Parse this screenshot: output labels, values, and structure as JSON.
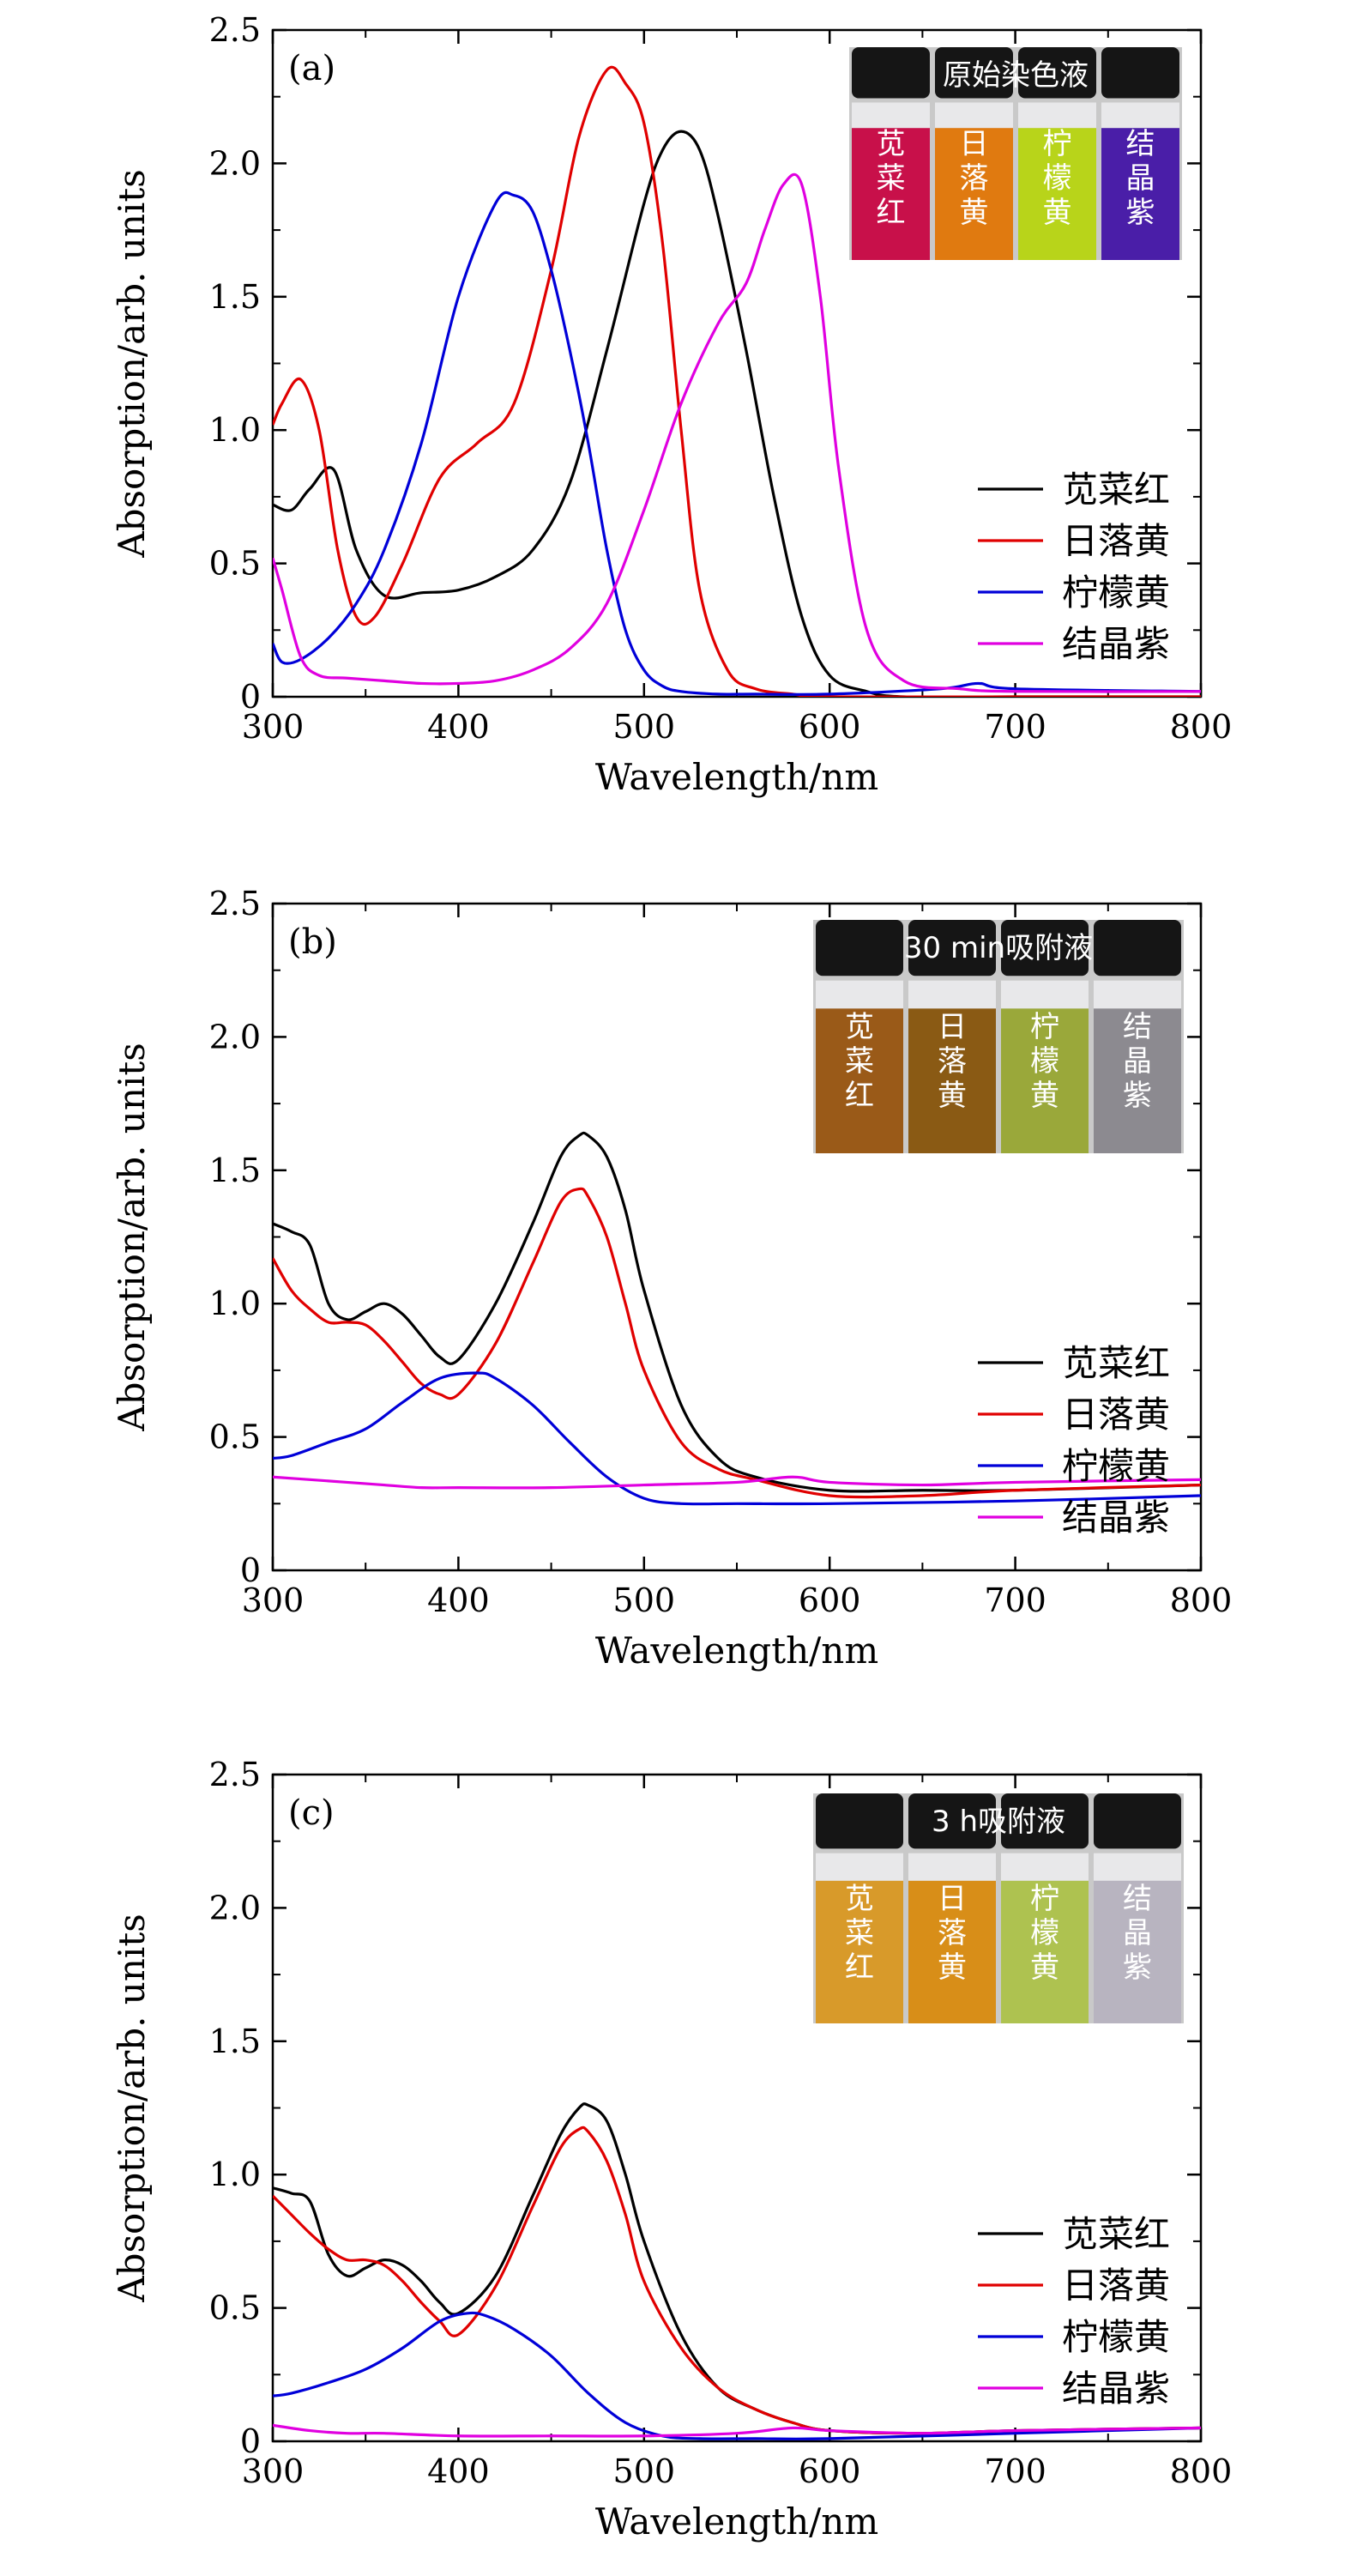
{
  "chart_data": [
    {
      "type": "line",
      "panel_label": "(a)",
      "xlabel": "Wavelength/nm",
      "ylabel": "Absorption/arb. units",
      "xlim": [
        300,
        800
      ],
      "ylim": [
        0,
        2.5
      ],
      "xticks": [
        "300",
        "400",
        "500",
        "600",
        "700",
        "800"
      ],
      "yticks": [
        "0",
        "0.5",
        "1.0",
        "1.5",
        "2.0",
        "2.5"
      ],
      "legend_position": "right",
      "photo": {
        "title": "原始染色液",
        "vials": [
          {
            "label": "苋菜红",
            "color": "#c8104a"
          },
          {
            "label": "日落黄",
            "color": "#e07a10"
          },
          {
            "label": "柠檬黄",
            "color": "#b8d41a"
          },
          {
            "label": "结晶紫",
            "color": "#4a1ea8"
          }
        ]
      },
      "series": [
        {
          "name": "苋菜红",
          "color": "#000000",
          "x": [
            300,
            310,
            320,
            333,
            345,
            360,
            380,
            400,
            420,
            440,
            460,
            480,
            500,
            510,
            520,
            530,
            540,
            555,
            570,
            585,
            600,
            620,
            640,
            700,
            800
          ],
          "y": [
            0.72,
            0.7,
            0.78,
            0.85,
            0.55,
            0.38,
            0.39,
            0.4,
            0.45,
            0.55,
            0.8,
            1.3,
            1.85,
            2.05,
            2.12,
            2.05,
            1.8,
            1.3,
            0.75,
            0.3,
            0.08,
            0.02,
            0.0,
            0.0,
            0.0
          ]
        },
        {
          "name": "日落黄",
          "color": "#e00000",
          "x": [
            300,
            305,
            315,
            325,
            335,
            345,
            355,
            370,
            390,
            410,
            430,
            450,
            465,
            480,
            490,
            500,
            510,
            520,
            530,
            545,
            560,
            580,
            600,
            700,
            800
          ],
          "y": [
            1.02,
            1.1,
            1.19,
            1.0,
            0.55,
            0.3,
            0.3,
            0.5,
            0.82,
            0.95,
            1.1,
            1.6,
            2.1,
            2.35,
            2.3,
            2.15,
            1.7,
            1.0,
            0.4,
            0.1,
            0.03,
            0.01,
            0.0,
            0.0,
            0.0
          ]
        },
        {
          "name": "柠檬黄",
          "color": "#0000d8",
          "x": [
            300,
            305,
            315,
            330,
            345,
            360,
            380,
            400,
            420,
            430,
            440,
            450,
            460,
            470,
            480,
            490,
            500,
            510,
            520,
            540,
            560,
            600,
            660,
            680,
            700,
            800
          ],
          "y": [
            0.2,
            0.13,
            0.14,
            0.22,
            0.35,
            0.55,
            0.95,
            1.5,
            1.85,
            1.88,
            1.82,
            1.6,
            1.3,
            0.95,
            0.55,
            0.25,
            0.1,
            0.04,
            0.02,
            0.01,
            0.01,
            0.01,
            0.03,
            0.05,
            0.03,
            0.02
          ]
        },
        {
          "name": "结晶紫",
          "color": "#e000e0",
          "x": [
            300,
            305,
            315,
            325,
            340,
            360,
            380,
            400,
            420,
            440,
            460,
            480,
            500,
            520,
            540,
            555,
            565,
            575,
            585,
            595,
            605,
            620,
            640,
            670,
            700,
            800
          ],
          "y": [
            0.52,
            0.4,
            0.15,
            0.08,
            0.07,
            0.06,
            0.05,
            0.05,
            0.06,
            0.1,
            0.18,
            0.35,
            0.7,
            1.1,
            1.4,
            1.55,
            1.75,
            1.92,
            1.92,
            1.5,
            0.85,
            0.25,
            0.06,
            0.03,
            0.02,
            0.02
          ]
        }
      ]
    },
    {
      "type": "line",
      "panel_label": "(b)",
      "xlabel": "Wavelength/nm",
      "ylabel": "Absorption/arb. units",
      "xlim": [
        300,
        800
      ],
      "ylim": [
        0,
        2.5
      ],
      "xticks": [
        "300",
        "400",
        "500",
        "600",
        "700",
        "800"
      ],
      "yticks": [
        "0",
        "0.5",
        "1.0",
        "1.5",
        "2.0",
        "2.5"
      ],
      "legend_position": "right",
      "photo": {
        "title": "30 min吸附液",
        "vials": [
          {
            "label": "苋菜红",
            "color": "#9a5a18"
          },
          {
            "label": "日落黄",
            "color": "#8a5a14"
          },
          {
            "label": "柠檬黄",
            "color": "#9aa83a"
          },
          {
            "label": "结晶紫",
            "color": "#8c8a90"
          }
        ]
      },
      "series": [
        {
          "name": "苋菜红",
          "color": "#000000",
          "x": [
            300,
            310,
            320,
            330,
            340,
            350,
            360,
            370,
            380,
            390,
            400,
            420,
            440,
            455,
            465,
            470,
            480,
            490,
            500,
            520,
            540,
            560,
            600,
            650,
            700,
            800
          ],
          "y": [
            1.3,
            1.27,
            1.22,
            1.0,
            0.94,
            0.97,
            1.0,
            0.96,
            0.88,
            0.8,
            0.79,
            1.0,
            1.3,
            1.55,
            1.63,
            1.63,
            1.55,
            1.35,
            1.05,
            0.62,
            0.42,
            0.35,
            0.3,
            0.3,
            0.3,
            0.32
          ]
        },
        {
          "name": "日落黄",
          "color": "#e00000",
          "x": [
            300,
            310,
            320,
            330,
            340,
            350,
            360,
            370,
            380,
            390,
            400,
            420,
            440,
            455,
            465,
            470,
            480,
            490,
            500,
            520,
            540,
            560,
            600,
            650,
            700,
            800
          ],
          "y": [
            1.17,
            1.05,
            0.98,
            0.93,
            0.93,
            0.92,
            0.86,
            0.78,
            0.7,
            0.66,
            0.66,
            0.85,
            1.15,
            1.38,
            1.43,
            1.4,
            1.25,
            1.0,
            0.75,
            0.48,
            0.38,
            0.34,
            0.28,
            0.28,
            0.3,
            0.32
          ]
        },
        {
          "name": "柠檬黄",
          "color": "#0000d8",
          "x": [
            300,
            310,
            330,
            350,
            370,
            390,
            410,
            420,
            440,
            460,
            480,
            500,
            520,
            550,
            600,
            700,
            800
          ],
          "y": [
            0.42,
            0.43,
            0.48,
            0.53,
            0.63,
            0.72,
            0.74,
            0.72,
            0.62,
            0.48,
            0.35,
            0.27,
            0.25,
            0.25,
            0.25,
            0.26,
            0.28
          ]
        },
        {
          "name": "结晶紫",
          "color": "#e000e0",
          "x": [
            300,
            320,
            340,
            360,
            380,
            400,
            450,
            500,
            550,
            580,
            600,
            650,
            700,
            800
          ],
          "y": [
            0.35,
            0.34,
            0.33,
            0.32,
            0.31,
            0.31,
            0.31,
            0.32,
            0.33,
            0.35,
            0.33,
            0.32,
            0.33,
            0.34
          ]
        }
      ]
    },
    {
      "type": "line",
      "panel_label": "(c)",
      "xlabel": "Wavelength/nm",
      "ylabel": "Absorption/arb. units",
      "xlim": [
        300,
        800
      ],
      "ylim": [
        0,
        2.5
      ],
      "xticks": [
        "300",
        "400",
        "500",
        "600",
        "700",
        "800"
      ],
      "yticks": [
        "0",
        "0.5",
        "1.0",
        "1.5",
        "2.0",
        "2.5"
      ],
      "legend_position": "right",
      "photo": {
        "title": "3 h吸附液",
        "vials": [
          {
            "label": "苋菜红",
            "color": "#d89a2a"
          },
          {
            "label": "日落黄",
            "color": "#d88e18"
          },
          {
            "label": "柠檬黄",
            "color": "#aec250"
          },
          {
            "label": "结晶紫",
            "color": "#b8b4c0"
          }
        ]
      },
      "series": [
        {
          "name": "苋菜红",
          "color": "#000000",
          "x": [
            300,
            310,
            320,
            330,
            340,
            350,
            360,
            370,
            380,
            390,
            400,
            420,
            440,
            455,
            465,
            470,
            480,
            490,
            500,
            520,
            540,
            560,
            580,
            600,
            650,
            700,
            800
          ],
          "y": [
            0.95,
            0.93,
            0.9,
            0.7,
            0.62,
            0.65,
            0.68,
            0.66,
            0.6,
            0.52,
            0.48,
            0.62,
            0.92,
            1.15,
            1.25,
            1.26,
            1.2,
            1.0,
            0.75,
            0.4,
            0.2,
            0.12,
            0.07,
            0.04,
            0.03,
            0.04,
            0.05
          ]
        },
        {
          "name": "日落黄",
          "color": "#e00000",
          "x": [
            300,
            310,
            320,
            330,
            340,
            350,
            360,
            370,
            380,
            390,
            400,
            420,
            440,
            455,
            465,
            470,
            480,
            490,
            500,
            520,
            540,
            560,
            580,
            600,
            650,
            700,
            800
          ],
          "y": [
            0.92,
            0.85,
            0.78,
            0.72,
            0.68,
            0.68,
            0.66,
            0.6,
            0.52,
            0.45,
            0.4,
            0.58,
            0.88,
            1.1,
            1.17,
            1.16,
            1.05,
            0.85,
            0.6,
            0.35,
            0.2,
            0.12,
            0.07,
            0.04,
            0.03,
            0.04,
            0.05
          ]
        },
        {
          "name": "柠檬黄",
          "color": "#0000d8",
          "x": [
            300,
            310,
            330,
            350,
            370,
            390,
            405,
            415,
            430,
            450,
            470,
            490,
            510,
            530,
            560,
            600,
            700,
            800
          ],
          "y": [
            0.17,
            0.18,
            0.22,
            0.27,
            0.35,
            0.45,
            0.48,
            0.47,
            0.42,
            0.32,
            0.18,
            0.07,
            0.02,
            0.01,
            0.01,
            0.01,
            0.03,
            0.05
          ]
        },
        {
          "name": "结晶紫",
          "color": "#e000e0",
          "x": [
            300,
            320,
            340,
            360,
            400,
            450,
            500,
            550,
            580,
            600,
            650,
            700,
            800
          ],
          "y": [
            0.06,
            0.04,
            0.03,
            0.03,
            0.02,
            0.02,
            0.02,
            0.03,
            0.05,
            0.04,
            0.03,
            0.04,
            0.05
          ]
        }
      ]
    }
  ]
}
